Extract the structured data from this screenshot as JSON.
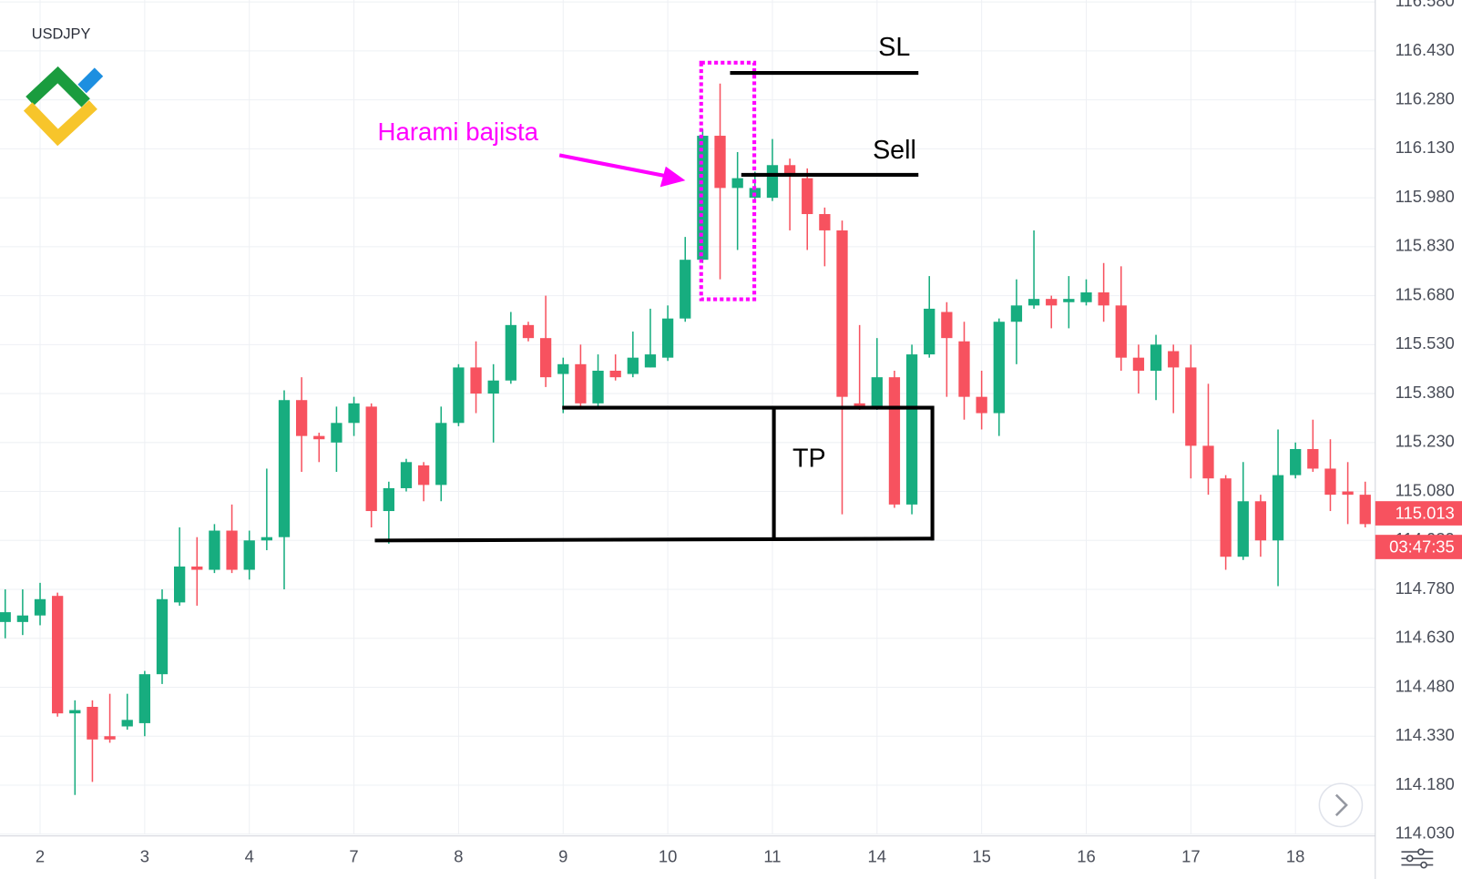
{
  "chart_data": {
    "type": "candlestick",
    "symbol": "USDJPY",
    "up_color": "#17ad7f",
    "down_color": "#f7525f",
    "grid": true,
    "categories": [
      null,
      null,
      "2",
      null,
      null,
      null,
      null,
      null,
      "3",
      null,
      null,
      null,
      null,
      null,
      "4",
      null,
      null,
      null,
      null,
      null,
      "7",
      null,
      null,
      null,
      null,
      null,
      "8",
      null,
      null,
      null,
      null,
      null,
      "9",
      null,
      null,
      null,
      null,
      null,
      "10",
      null,
      null,
      null,
      null,
      null,
      "11",
      null,
      null,
      null,
      null,
      null,
      "14",
      null,
      null,
      null,
      null,
      null,
      "15",
      null,
      null,
      null,
      null,
      null,
      "16",
      null,
      null,
      null,
      null,
      null,
      "17",
      null,
      null,
      null,
      null,
      null,
      "18",
      null,
      null,
      null,
      null
    ],
    "open": [
      114.68,
      114.68,
      114.7,
      114.76,
      114.4,
      114.42,
      114.33,
      114.36,
      114.37,
      114.52,
      114.74,
      114.85,
      114.84,
      114.96,
      114.84,
      114.93,
      114.94,
      115.36,
      115.25,
      115.23,
      115.29,
      115.34,
      115.02,
      115.09,
      115.16,
      115.1,
      115.29,
      115.46,
      115.38,
      115.42,
      115.59,
      115.55,
      115.44,
      115.47,
      115.35,
      115.45,
      115.44,
      115.46,
      115.49,
      115.61,
      115.79,
      116.17,
      116.01,
      115.98,
      115.98,
      116.08,
      116.04,
      115.93,
      115.88,
      115.35,
      115.34,
      115.43,
      115.04,
      115.5,
      115.63,
      115.54,
      115.37,
      115.32,
      115.6,
      115.65,
      115.67,
      115.66,
      115.66,
      115.69,
      115.65,
      115.49,
      115.45,
      115.51,
      115.46,
      115.22,
      115.12,
      114.88,
      115.05,
      114.93,
      115.13,
      115.21,
      115.15,
      115.08,
      115.07
    ],
    "high": [
      114.78,
      114.78,
      114.8,
      114.77,
      114.44,
      114.44,
      114.46,
      114.46,
      114.53,
      114.78,
      114.97,
      114.94,
      114.98,
      115.04,
      114.96,
      115.15,
      115.39,
      115.43,
      115.26,
      115.34,
      115.37,
      115.35,
      115.11,
      115.18,
      115.17,
      115.34,
      115.47,
      115.54,
      115.47,
      115.63,
      115.6,
      115.68,
      115.49,
      115.53,
      115.5,
      115.5,
      115.57,
      115.64,
      115.65,
      115.86,
      116.19,
      116.33,
      116.12,
      116.06,
      116.16,
      116.1,
      116.07,
      115.95,
      115.91,
      115.59,
      115.55,
      115.45,
      115.53,
      115.74,
      115.66,
      115.6,
      115.45,
      115.61,
      115.73,
      115.88,
      115.68,
      115.74,
      115.73,
      115.78,
      115.77,
      115.53,
      115.56,
      115.53,
      115.53,
      115.41,
      115.13,
      115.17,
      115.07,
      115.27,
      115.23,
      115.3,
      115.24,
      115.17,
      115.11
    ],
    "low": [
      114.63,
      114.64,
      114.67,
      114.39,
      114.15,
      114.19,
      114.31,
      114.35,
      114.33,
      114.49,
      114.73,
      114.73,
      114.83,
      114.83,
      114.81,
      114.9,
      114.78,
      115.14,
      115.17,
      115.14,
      115.25,
      114.97,
      114.92,
      115.08,
      115.05,
      115.05,
      115.28,
      115.32,
      115.23,
      115.41,
      115.54,
      115.4,
      115.32,
      115.34,
      115.34,
      115.42,
      115.43,
      115.46,
      115.48,
      115.6,
      115.78,
      115.73,
      115.82,
      115.97,
      115.97,
      115.88,
      115.82,
      115.77,
      115.01,
      115.33,
      115.33,
      115.03,
      115.01,
      115.49,
      115.37,
      115.3,
      115.27,
      115.25,
      115.47,
      115.64,
      115.58,
      115.58,
      115.65,
      115.6,
      115.45,
      115.38,
      115.36,
      115.32,
      115.12,
      115.07,
      114.84,
      114.87,
      114.88,
      114.79,
      115.12,
      115.14,
      115.02,
      114.98,
      114.97
    ],
    "close": [
      114.71,
      114.7,
      114.75,
      114.4,
      114.41,
      114.32,
      114.32,
      114.38,
      114.52,
      114.75,
      114.85,
      114.84,
      114.96,
      114.84,
      114.93,
      114.94,
      115.36,
      115.25,
      115.24,
      115.29,
      115.35,
      115.02,
      115.09,
      115.17,
      115.1,
      115.29,
      115.46,
      115.38,
      115.42,
      115.59,
      115.55,
      115.43,
      115.47,
      115.35,
      115.45,
      115.43,
      115.49,
      115.5,
      115.61,
      115.79,
      116.17,
      116.01,
      116.04,
      116.01,
      116.08,
      116.05,
      115.93,
      115.88,
      115.37,
      115.34,
      115.43,
      115.04,
      115.5,
      115.64,
      115.55,
      115.37,
      115.32,
      115.6,
      115.65,
      115.67,
      115.65,
      115.67,
      115.69,
      115.65,
      115.49,
      115.45,
      115.53,
      115.46,
      115.22,
      115.12,
      114.88,
      115.05,
      114.93,
      115.13,
      115.21,
      115.15,
      115.07,
      115.07,
      114.98
    ],
    "ylim": [
      114.03,
      116.586
    ],
    "yticks": [
      {
        "value": 114.03,
        "label": "114.030"
      },
      {
        "value": 114.18,
        "label": "114.180"
      },
      {
        "value": 114.33,
        "label": "114.330"
      },
      {
        "value": 114.48,
        "label": "114.480"
      },
      {
        "value": 114.63,
        "label": "114.630"
      },
      {
        "value": 114.78,
        "label": "114.780"
      },
      {
        "value": 114.93,
        "label": "114.930"
      },
      {
        "value": 115.08,
        "label": "115.080"
      },
      {
        "value": 115.23,
        "label": "115.230"
      },
      {
        "value": 115.38,
        "label": "115.380"
      },
      {
        "value": 115.53,
        "label": "115.530"
      },
      {
        "value": 115.68,
        "label": "115.680"
      },
      {
        "value": 115.83,
        "label": "115.830"
      },
      {
        "value": 115.98,
        "label": "115.980"
      },
      {
        "value": 116.13,
        "label": "116.130"
      },
      {
        "value": 116.28,
        "label": "116.280"
      },
      {
        "value": 116.43,
        "label": "116.430"
      },
      {
        "value": 116.58,
        "label": "116.580"
      }
    ],
    "last_price": 115.013,
    "countdown": "03:47:35",
    "annotations": {
      "pattern": "Harami bajista",
      "stop_loss": "SL",
      "entry": "Sell",
      "take_profit": "TP"
    }
  }
}
